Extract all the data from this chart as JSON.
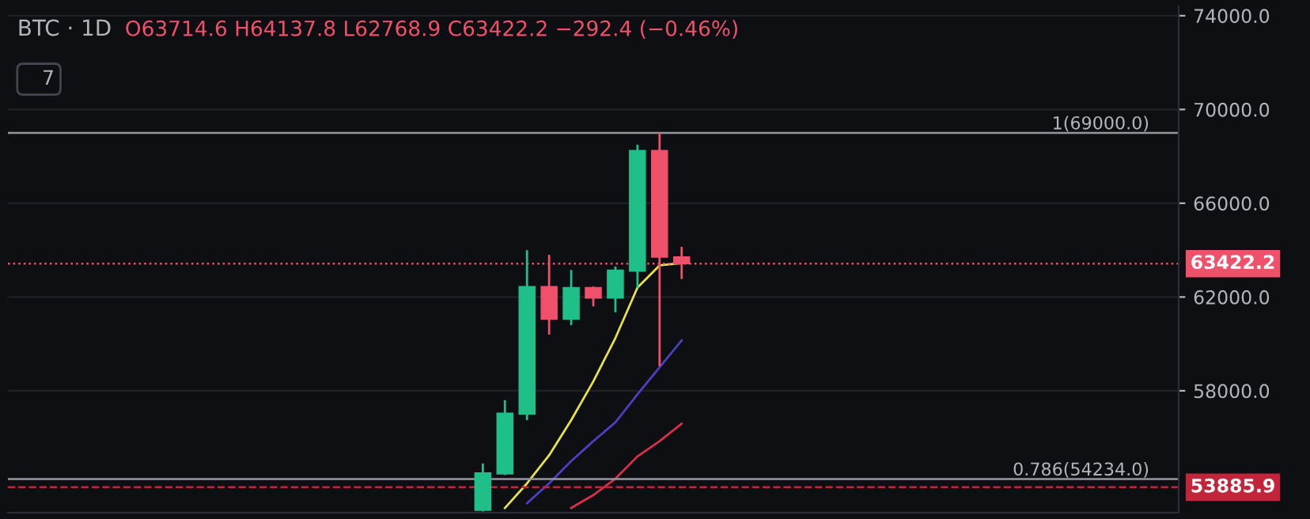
{
  "chart_data": {
    "type": "candlestick",
    "title": "BTC · 1D",
    "categories": [
      null,
      null,
      null,
      null,
      null,
      null,
      null,
      null,
      null,
      null,
      null,
      null,
      null,
      null,
      null,
      null,
      null,
      null,
      null,
      null,
      null,
      null,
      null,
      null,
      null,
      null,
      null,
      null,
      null,
      null,
      null,
      null,
      null,
      null,
      null,
      null,
      null,
      null,
      null,
      null,
      null,
      null,
      null,
      null,
      null,
      null,
      null,
      null,
      null,
      null,
      null,
      null,
      null
    ],
    "ohlc": [
      null,
      null,
      null,
      null,
      null,
      null,
      null,
      null,
      null,
      null,
      null,
      null,
      null,
      null,
      null,
      null,
      null,
      null,
      null,
      null,
      null,
      [
        52900,
        54900,
        52850,
        54500
      ],
      [
        54450,
        57600,
        54400,
        57050
      ],
      [
        57000,
        64000,
        56750,
        62450
      ],
      [
        62450,
        63800,
        60400,
        61050
      ],
      [
        61050,
        63150,
        60800,
        62400
      ],
      [
        62400,
        62450,
        61600,
        61950
      ],
      [
        61950,
        63300,
        61350,
        63150
      ],
      [
        63100,
        68500,
        62400,
        68250
      ],
      [
        68250,
        69000,
        59050,
        63700
      ],
      [
        63714.6,
        64137.8,
        62768.9,
        63422.2
      ],
      null,
      null,
      null,
      null,
      null,
      null,
      null,
      null,
      null,
      null,
      null,
      null,
      null,
      null,
      null,
      null,
      null,
      null,
      null,
      null,
      null,
      null
    ],
    "colors": [
      null,
      null,
      null,
      null,
      null,
      null,
      null,
      null,
      null,
      null,
      null,
      null,
      null,
      null,
      null,
      null,
      null,
      null,
      null,
      null,
      null,
      "#1fbf8a",
      "#1fbf8a",
      "#1fbf8a",
      "#f0516a",
      "#1fbf8a",
      "#f0516a",
      "#1fbf8a",
      "#1fbf8a",
      "#f0516a",
      "#f0516a",
      null,
      null,
      null,
      null,
      null,
      null,
      null,
      null,
      null,
      null,
      null,
      null,
      null,
      null,
      null,
      null,
      null,
      null,
      null,
      null,
      null,
      null
    ],
    "series": [
      {
        "type": "line",
        "color": "#e6e24a",
        "values": [
          null,
          null,
          null,
          null,
          null,
          null,
          null,
          null,
          null,
          null,
          null,
          null,
          null,
          null,
          null,
          null,
          null,
          null,
          null,
          null,
          null,
          null,
          53000,
          54050,
          55250,
          56750,
          58400,
          60250,
          62400,
          63350,
          63450,
          null,
          null,
          null,
          null,
          null,
          null,
          null,
          null,
          null,
          null,
          null,
          null,
          null,
          null,
          null,
          null,
          null,
          null,
          null,
          null,
          null,
          null
        ]
      },
      {
        "type": "line",
        "color": "#4b3fc4",
        "values": [
          null,
          null,
          null,
          null,
          null,
          null,
          null,
          null,
          null,
          null,
          null,
          null,
          null,
          null,
          null,
          null,
          null,
          null,
          null,
          null,
          null,
          null,
          null,
          53200,
          54050,
          55000,
          55850,
          56650,
          57850,
          59000,
          60150,
          null,
          null,
          null,
          null,
          null,
          null,
          null,
          null,
          null,
          null,
          null,
          null,
          null,
          null,
          null,
          null,
          null,
          null,
          null,
          null,
          null,
          null
        ]
      },
      {
        "type": "line",
        "color": "#d8304a",
        "values": [
          null,
          null,
          null,
          null,
          null,
          null,
          null,
          null,
          null,
          null,
          null,
          null,
          null,
          null,
          null,
          null,
          null,
          null,
          null,
          null,
          null,
          null,
          null,
          null,
          null,
          53000,
          53550,
          54250,
          55200,
          55850,
          56600,
          null,
          null,
          null,
          null,
          null,
          null,
          null,
          null,
          null,
          null,
          null,
          null,
          null,
          null,
          null,
          null,
          null,
          null,
          null,
          null,
          null,
          null
        ]
      }
    ],
    "ylim": [
      52800,
      74400
    ],
    "yticks": [
      {
        "value": 74000,
        "label": "74000.0"
      },
      {
        "value": 70000,
        "label": "70000.0"
      },
      {
        "value": 66000,
        "label": "66000.0"
      },
      {
        "value": 62000,
        "label": "62000.0"
      },
      {
        "value": 58000,
        "label": "58000.0"
      }
    ],
    "grid": "y",
    "ref_lines": [
      {
        "axis": "y",
        "value": 69000,
        "label": "1(69000.0)",
        "color": "#9598a1",
        "line_style": "solid"
      },
      {
        "axis": "y",
        "value": 54234,
        "label": "0.786(54234.0)",
        "color": "#9598a1",
        "line_style": "solid"
      },
      {
        "axis": "y",
        "value": 63422.2,
        "label": "63422.2",
        "color": "#f0516a",
        "line_style": "dotted"
      },
      {
        "axis": "y",
        "value": 53885.9,
        "label": "53885.9",
        "color": "#c2243a",
        "line_style": "dashed"
      }
    ],
    "annotations": [
      "O63714.6 H64137.8 L62768.9 C63422.2 −292.4 (−0.46%)",
      "7"
    ]
  }
}
